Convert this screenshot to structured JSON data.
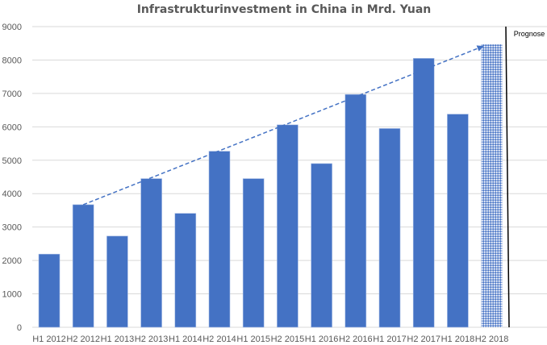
{
  "chart_data": {
    "type": "bar",
    "title": "Infrastrukturinvestment in China in Mrd. Yuan",
    "xlabel": "",
    "ylabel": "",
    "ylim": [
      0,
      9000
    ],
    "yticks": [
      "0",
      "1000",
      "2000",
      "3000",
      "4000",
      "5000",
      "6000",
      "7000",
      "8000",
      "9000"
    ],
    "grid": true,
    "categories": [
      "H1 2012",
      "H2 2012",
      "H1 2013",
      "H2 2013",
      "H1 2014",
      "H2 2014",
      "H1 2015",
      "H2 2015",
      "H1 2016",
      "H2 2016",
      "H1 2017",
      "H2 2017",
      "H1 2018",
      "H2 2018"
    ],
    "values": [
      2190,
      3670,
      2730,
      4450,
      3410,
      5270,
      4450,
      6060,
      4900,
      6970,
      5950,
      8050,
      6380,
      8470
    ],
    "forecast_categories": [
      "H2 2018"
    ],
    "forecast_label": "Prognose",
    "trend_line": {
      "from": [
        "H2 2012",
        3670
      ],
      "to": [
        "H2 2018",
        8400
      ],
      "style": "dashed-arrow"
    },
    "colors": {
      "bar": "#4472C4",
      "forecast": "#8FAADC",
      "grid": "#D9D9D9",
      "divider": "#000000"
    }
  }
}
